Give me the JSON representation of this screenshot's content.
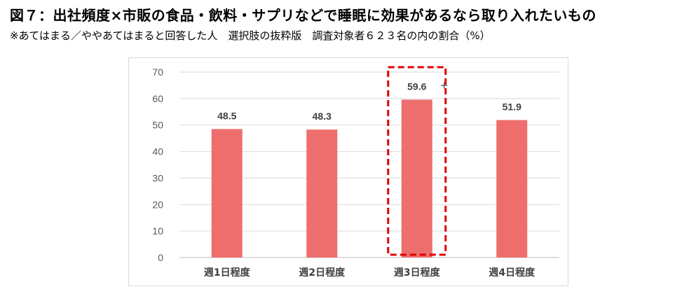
{
  "header": {
    "title": "図７：出社頻度×市販の食品・飲料・サプリなどで睡眠に効果があるなら取り入れたいもの",
    "subtitle": "※あてはまる／ややあてはまると回答した人　選択肢の抜粋版　調査対象者６２３名の内の割合（%）"
  },
  "chart_data": {
    "type": "bar",
    "categories": [
      "週1日程度",
      "週2日程度",
      "週3日程度",
      "週4日程度"
    ],
    "values": [
      48.5,
      48.3,
      59.6,
      51.9
    ],
    "value_labels": [
      "48.5",
      "48.3",
      "59.6",
      "51.9"
    ],
    "ylim": [
      0,
      70
    ],
    "yticks": [
      0,
      10,
      20,
      30,
      40,
      50,
      60,
      70
    ],
    "grid": true,
    "bar_color": "#ee6e6e",
    "highlight": {
      "category_index": 2,
      "marker": "+",
      "box_color": "#e00000"
    }
  }
}
